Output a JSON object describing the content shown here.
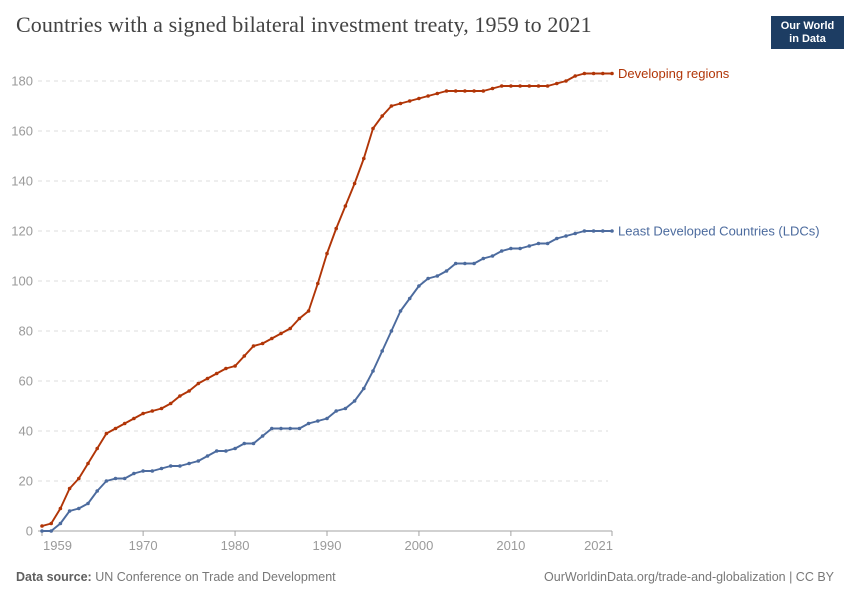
{
  "header": {
    "title": "Countries with a signed bilateral investment treaty, 1959 to 2021",
    "logo": {
      "line1": "Our World",
      "line2": "in Data",
      "bg_color": "#1d3d63",
      "stripe_color": "#d4342b"
    }
  },
  "footer": {
    "source_label": "Data source:",
    "source_text": " UN Conference on Trade and Development",
    "link_text": "OurWorldinData.org/trade-and-globalization | CC BY"
  },
  "chart_data": {
    "type": "line",
    "title": "Countries with a signed bilateral investment treaty, 1959 to 2021",
    "xlabel": "",
    "ylabel": "",
    "xlim": [
      1959,
      2021
    ],
    "ylim": [
      0,
      186
    ],
    "xticks": [
      1959,
      1970,
      1980,
      1990,
      2000,
      2010,
      2021
    ],
    "yticks": [
      0,
      20,
      40,
      60,
      80,
      100,
      120,
      140,
      160,
      180
    ],
    "grid": "horizontal-dashed",
    "legend": "end-of-line-labels",
    "markers": true,
    "x": [
      1959,
      1960,
      1961,
      1962,
      1963,
      1964,
      1965,
      1966,
      1967,
      1968,
      1969,
      1970,
      1971,
      1972,
      1973,
      1974,
      1975,
      1976,
      1977,
      1978,
      1979,
      1980,
      1981,
      1982,
      1983,
      1984,
      1985,
      1986,
      1987,
      1988,
      1989,
      1990,
      1991,
      1992,
      1993,
      1994,
      1995,
      1996,
      1997,
      1998,
      1999,
      2000,
      2001,
      2002,
      2003,
      2004,
      2005,
      2006,
      2007,
      2008,
      2009,
      2010,
      2011,
      2012,
      2013,
      2014,
      2015,
      2016,
      2017,
      2018,
      2019,
      2020,
      2021
    ],
    "series": [
      {
        "name": "Developing regions",
        "color": "#b13507",
        "values": [
          2,
          3,
          9,
          17,
          21,
          27,
          33,
          39,
          41,
          43,
          45,
          47,
          48,
          49,
          51,
          54,
          56,
          59,
          61,
          63,
          65,
          66,
          70,
          74,
          75,
          77,
          79,
          81,
          85,
          88,
          99,
          111,
          121,
          130,
          139,
          149,
          161,
          166,
          170,
          171,
          172,
          173,
          174,
          175,
          176,
          176,
          176,
          176,
          176,
          177,
          178,
          178,
          178,
          178,
          178,
          178,
          179,
          180,
          182,
          183,
          183,
          183,
          183
        ]
      },
      {
        "name": "Least Developed Countries (LDCs)",
        "color": "#4c6b9e",
        "values": [
          0,
          0,
          3,
          8,
          9,
          11,
          16,
          20,
          21,
          21,
          23,
          24,
          24,
          25,
          26,
          26,
          27,
          28,
          30,
          32,
          32,
          33,
          35,
          35,
          38,
          41,
          41,
          41,
          41,
          43,
          44,
          45,
          48,
          49,
          52,
          57,
          64,
          72,
          80,
          88,
          93,
          98,
          101,
          102,
          104,
          107,
          107,
          107,
          109,
          110,
          112,
          113,
          113,
          114,
          115,
          115,
          117,
          118,
          119,
          120,
          120,
          120,
          120
        ]
      }
    ],
    "axis_colors": {
      "axis_line": "#a3a3a3",
      "gridline": "#dedede",
      "tick_label": "#9a9a9a"
    }
  }
}
